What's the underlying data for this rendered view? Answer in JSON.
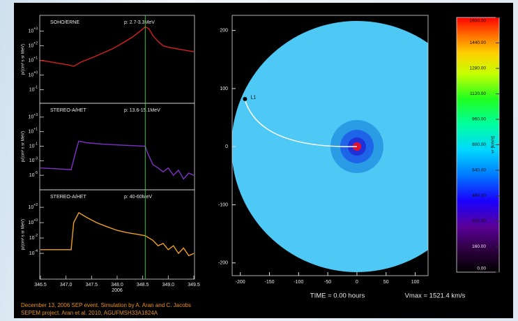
{
  "chart_data": [
    {
      "type": "line",
      "title": "SOHO/ERNE",
      "subtitle": "p: 2.7-3.3MeV",
      "ylabel": "p/(cm² s sr MeV)",
      "log_y": true,
      "color": "#d42020",
      "xlim": [
        346.5,
        349.5
      ],
      "ylim": [
        0.012,
        12000
      ],
      "yticks": [
        {
          "value": 1000,
          "label": "10+3"
        },
        {
          "value": 100,
          "label": "10+2"
        },
        {
          "value": 10,
          "label": "10+1"
        },
        {
          "value": 1,
          "label": "10+0"
        },
        {
          "value": 0.1,
          "label": "10-1"
        }
      ],
      "vline": 348.55,
      "vline_color": "#38c038",
      "x": [
        346.5,
        346.7,
        346.9,
        347.05,
        347.15,
        347.3,
        347.5,
        347.7,
        347.9,
        348.1,
        348.3,
        348.45,
        348.55,
        348.62,
        348.7,
        348.8,
        348.9,
        349.0,
        349.2,
        349.4,
        349.5
      ],
      "values": [
        10,
        8,
        6,
        5,
        4,
        8,
        15,
        30,
        60,
        150,
        400,
        1000,
        2000,
        1500,
        500,
        200,
        100,
        80,
        60,
        45,
        40
      ]
    },
    {
      "type": "line",
      "title": "STEREO-A/HET",
      "subtitle": "p: 13.6-15.1MeV",
      "ylabel": "p/(cm² s sr MeV)",
      "log_y": true,
      "color": "#8030c8",
      "xlim": [
        346.5,
        349.5
      ],
      "ylim": [
        1e-07,
        80000
      ],
      "yticks": [
        {
          "value": 1000,
          "label": "10+3"
        },
        {
          "value": 10,
          "label": "10+1"
        },
        {
          "value": 0.1,
          "label": "10-1"
        },
        {
          "value": 0.001,
          "label": "10-3"
        },
        {
          "value": 1e-05,
          "label": "10-5"
        }
      ],
      "vline": 348.55,
      "vline_color": "#38c038",
      "x": [
        346.5,
        346.8,
        347.1,
        347.2,
        347.25,
        347.4,
        347.7,
        348.0,
        348.3,
        348.55,
        348.6,
        348.7,
        348.8,
        348.9,
        349.0,
        349.1,
        349.2,
        349.3,
        349.4,
        349.5
      ],
      "values": [
        0.0001,
        8e-05,
        6e-05,
        0.03,
        0.5,
        0.3,
        0.2,
        0.15,
        0.12,
        0.1,
        0.01,
        0.0003,
        0.0001,
        3e-05,
        0.0001,
        1e-05,
        5e-05,
        3e-06,
        2e-05,
        1e-05
      ]
    },
    {
      "type": "line",
      "title": "STEREO-A/HET",
      "subtitle": "p: 40-60MeV",
      "ylabel": "p/(cm² s sr MeV)",
      "log_y": true,
      "color": "#f0a020",
      "xlim": [
        346.5,
        349.5
      ],
      "ylim": [
        4.4e-08,
        19000
      ],
      "yticks": [
        {
          "value": 100,
          "label": "10+2"
        },
        {
          "value": 1,
          "label": "10+0"
        },
        {
          "value": 0.01,
          "label": "10-2"
        },
        {
          "value": 0.0001,
          "label": "10-4"
        }
      ],
      "xticks": [
        346.5,
        {
          "value": 347,
          "label": "347.0"
        },
        347.5,
        {
          "value": 348,
          "label": "348.0"
        },
        348.5,
        {
          "value": 349,
          "label": "349.0"
        },
        349.5
      ],
      "xlabel": "2006",
      "vline": 348.55,
      "vline_color": "#38c038",
      "x": [
        346.5,
        347.1,
        347.15,
        347.25,
        347.4,
        347.6,
        347.8,
        348.0,
        348.2,
        348.4,
        348.55,
        348.7,
        348.8,
        348.9,
        349.0,
        349.1,
        349.2,
        349.3,
        349.4,
        349.5
      ],
      "values": [
        0.0003,
        0.0003,
        1,
        20,
        5,
        1,
        0.3,
        0.1,
        0.05,
        0.03,
        0.02,
        0.005,
        0.001,
        0.002,
        0.0003,
        0.001,
        0.0001,
        0.0005,
        5e-05,
        0.0001
      ]
    },
    {
      "type": "map",
      "xlim": [
        -214,
        122
      ],
      "ylim": [
        -222,
        226
      ],
      "xticks": [
        -200,
        -150,
        -100,
        -50,
        0,
        50,
        100
      ],
      "yticks": [
        200,
        100,
        0,
        -100,
        -200
      ],
      "x": [
        -192
      ],
      "values": [
        82
      ],
      "point_labels": [
        "L1"
      ],
      "annotations": [
        "TIME = 0.00 hours",
        "Vmax = 1521.4 km/s"
      ]
    },
    {
      "type": "colorbar",
      "ylabel": "vr [km/s]",
      "ylim": [
        0,
        1600
      ],
      "yticks": [
        {
          "value": 0,
          "label": "0.00"
        },
        {
          "value": 160,
          "label": "160.00"
        },
        {
          "value": 320,
          "label": "320.00"
        },
        {
          "value": 480,
          "label": "480.00"
        },
        {
          "value": 640,
          "label": "640.00"
        },
        {
          "value": 800,
          "label": "800.00"
        },
        {
          "value": 960,
          "label": "960.00"
        },
        {
          "value": 1120,
          "label": "1120.00"
        },
        {
          "value": 1280,
          "label": "1280.00"
        },
        {
          "value": 1440,
          "label": "1440.00"
        },
        {
          "value": 1600,
          "label": "1600.00"
        }
      ]
    }
  ],
  "captions": [
    "December 13, 2006 SEP event. Simulation by A. Aran and C. Jacobs",
    "SEPEM project. Aran et al. 2010, AGUFMSH33A1824A"
  ]
}
